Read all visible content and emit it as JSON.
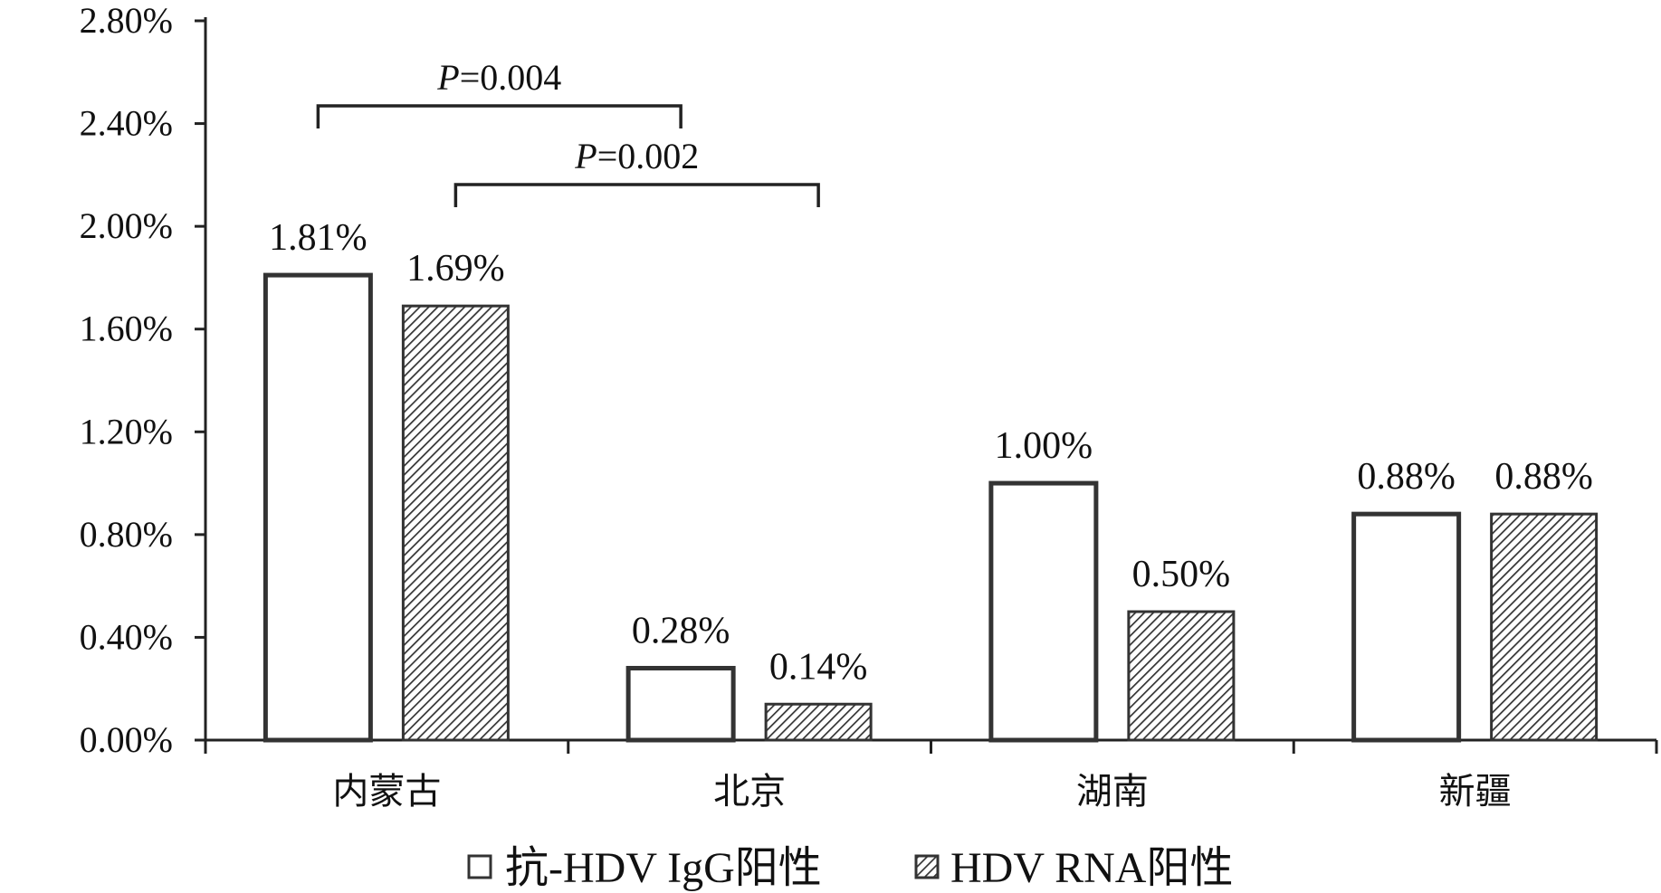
{
  "chart_data": {
    "type": "bar",
    "categories": [
      "内蒙古",
      "北京",
      "湖南",
      "新疆"
    ],
    "series": [
      {
        "name": "抗-HDV IgG阳性",
        "values": [
          1.81,
          0.28,
          1.0,
          0.88
        ],
        "labels": [
          "1.81%",
          "0.28%",
          "1.00%",
          "0.88%"
        ],
        "fill": "plain"
      },
      {
        "name": "HDV RNA阳性",
        "values": [
          1.69,
          0.14,
          0.5,
          0.88
        ],
        "labels": [
          "1.69%",
          "0.14%",
          "0.50%",
          "0.88%"
        ],
        "fill": "hatched"
      }
    ],
    "yticks": [
      "0.00%",
      "0.40%",
      "0.80%",
      "1.20%",
      "1.60%",
      "2.00%",
      "2.40%",
      "2.80%"
    ],
    "ylim": [
      0,
      2.8
    ],
    "title": "",
    "xlabel": "",
    "ylabel": "",
    "grid": false,
    "legend_position": "bottom",
    "annotations": [
      {
        "prefix": "P",
        "text": "=0.004",
        "from": {
          "category": 0,
          "series": 0
        },
        "to": {
          "category": 1,
          "series": 0
        }
      },
      {
        "prefix": "P",
        "text": "=0.002",
        "from": {
          "category": 0,
          "series": 1
        },
        "to": {
          "category": 1,
          "series": 1
        }
      }
    ]
  },
  "colors": {
    "axis": "#222222",
    "bar_stroke": "#333333",
    "bar_fill": "#ffffff",
    "hatch": "#333333"
  }
}
